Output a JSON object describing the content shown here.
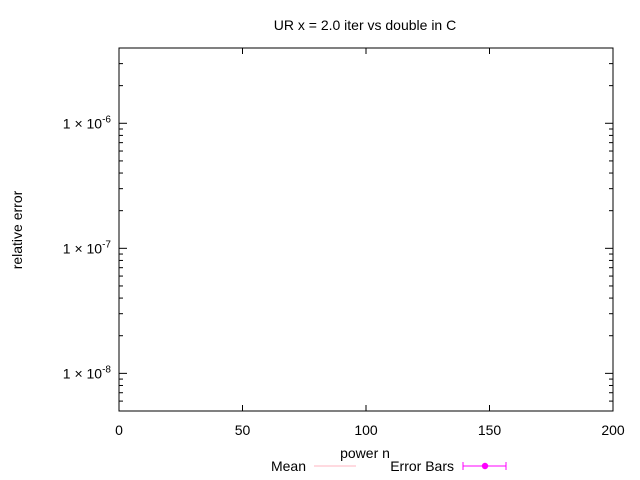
{
  "chart_data": {
    "type": "line",
    "title": "UR x = 2.0 iter vs double in C",
    "xlabel": "power n",
    "ylabel": "relative error",
    "xlim": [
      0,
      200
    ],
    "ylim": [
      5e-09,
      4e-06
    ],
    "yscale": "log",
    "grid": false,
    "legend_position": "bottom",
    "x_ticks": [
      {
        "value": 0,
        "label": "0"
      },
      {
        "value": 50,
        "label": "50"
      },
      {
        "value": 100,
        "label": "100"
      },
      {
        "value": 150,
        "label": "150"
      },
      {
        "value": 200,
        "label": "200"
      }
    ],
    "y_ticks": [
      {
        "value": 1e-08,
        "mantissa": "1 × 10",
        "exponent": "-8"
      },
      {
        "value": 1e-07,
        "mantissa": "1 × 10",
        "exponent": "-7"
      },
      {
        "value": 1e-06,
        "mantissa": "1 × 10",
        "exponent": "-6"
      }
    ],
    "series": [
      {
        "name": "Mean",
        "color": "#ffb6c1",
        "style": "line",
        "points": []
      },
      {
        "name": "Error Bars",
        "color": "#ff00ff",
        "style": "errorbars",
        "points": []
      }
    ]
  }
}
